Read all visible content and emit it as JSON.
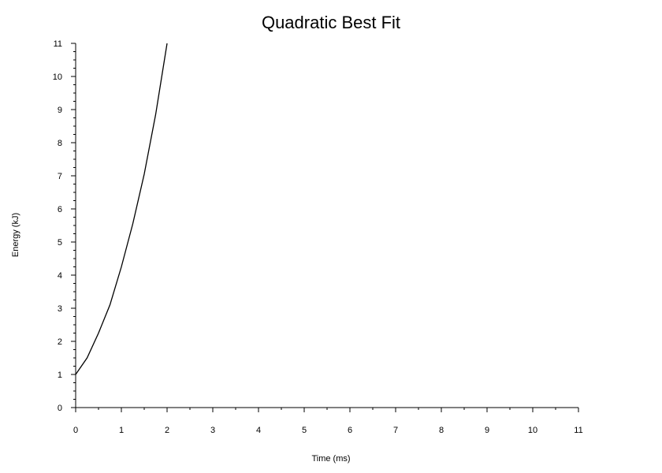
{
  "chart_data": {
    "type": "line",
    "title": "Quadratic Best Fit",
    "xlabel": "Time (ms)",
    "ylabel": "Energy (kJ)",
    "xlim": [
      0,
      11
    ],
    "ylim": [
      0,
      11
    ],
    "x_ticks": [
      "0",
      "1",
      "2",
      "3",
      "4",
      "5",
      "6",
      "7",
      "8",
      "9",
      "10",
      "11"
    ],
    "y_ticks": [
      "0",
      "1",
      "2",
      "3",
      "4",
      "5",
      "6",
      "7",
      "8",
      "9",
      "10",
      "11"
    ],
    "grid": false,
    "legend": "none",
    "series": [
      {
        "x": [
          0,
          0.25,
          0.5,
          0.75,
          1,
          1.25,
          1.5,
          1.75,
          2
        ],
        "y": [
          1,
          1.5,
          2.25,
          3.1,
          4.25,
          5.55,
          7.05,
          8.85,
          11
        ],
        "color": "#000000"
      }
    ]
  }
}
